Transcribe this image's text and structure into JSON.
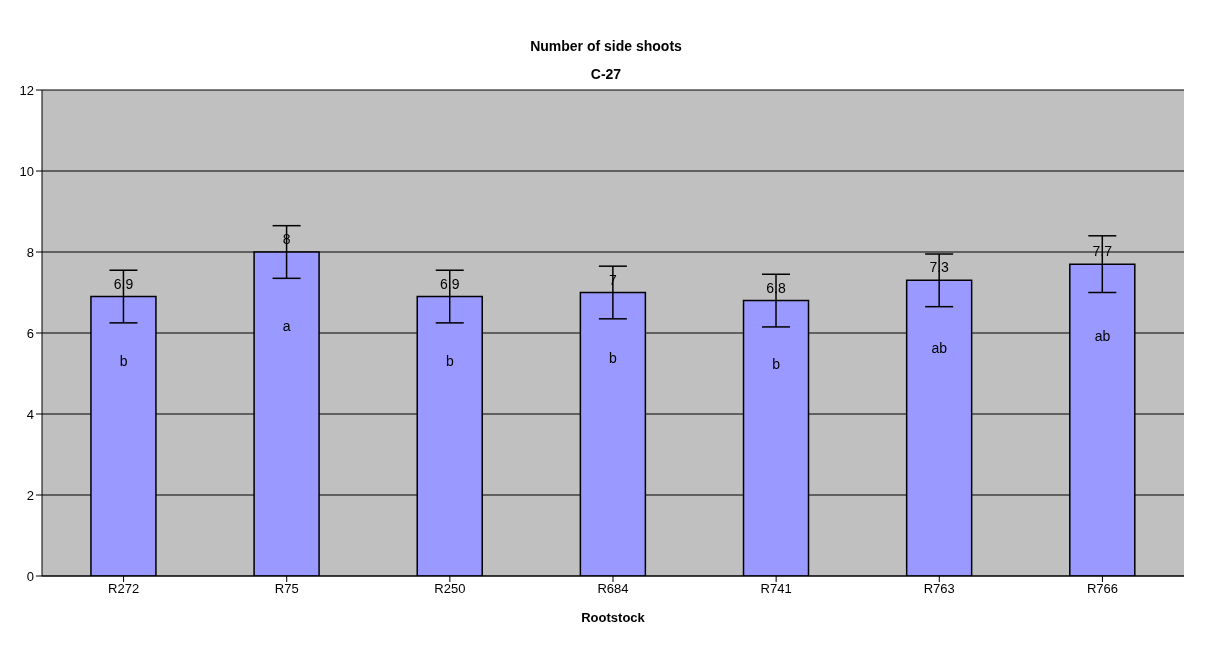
{
  "chart_data": {
    "type": "bar",
    "title": "Number of side shoots",
    "subtitle": "C-27",
    "xlabel": "Rootstock",
    "categories": [
      "R272",
      "R75",
      "R250",
      "R684",
      "R741",
      "R763",
      "R766"
    ],
    "values": [
      6.9,
      8,
      6.9,
      7,
      6.8,
      7.3,
      7.7
    ],
    "errors": [
      0.65,
      0.65,
      0.65,
      0.65,
      0.65,
      0.65,
      0.7
    ],
    "color": "#9999ff",
    "data_labels": true,
    "ylim": [
      0,
      12
    ],
    "yticks": [
      0,
      2,
      4,
      6,
      8,
      10,
      12
    ],
    "grid": "y",
    "annotations": [
      "b",
      "a",
      "b",
      "b",
      "b",
      "ab",
      "ab"
    ]
  }
}
